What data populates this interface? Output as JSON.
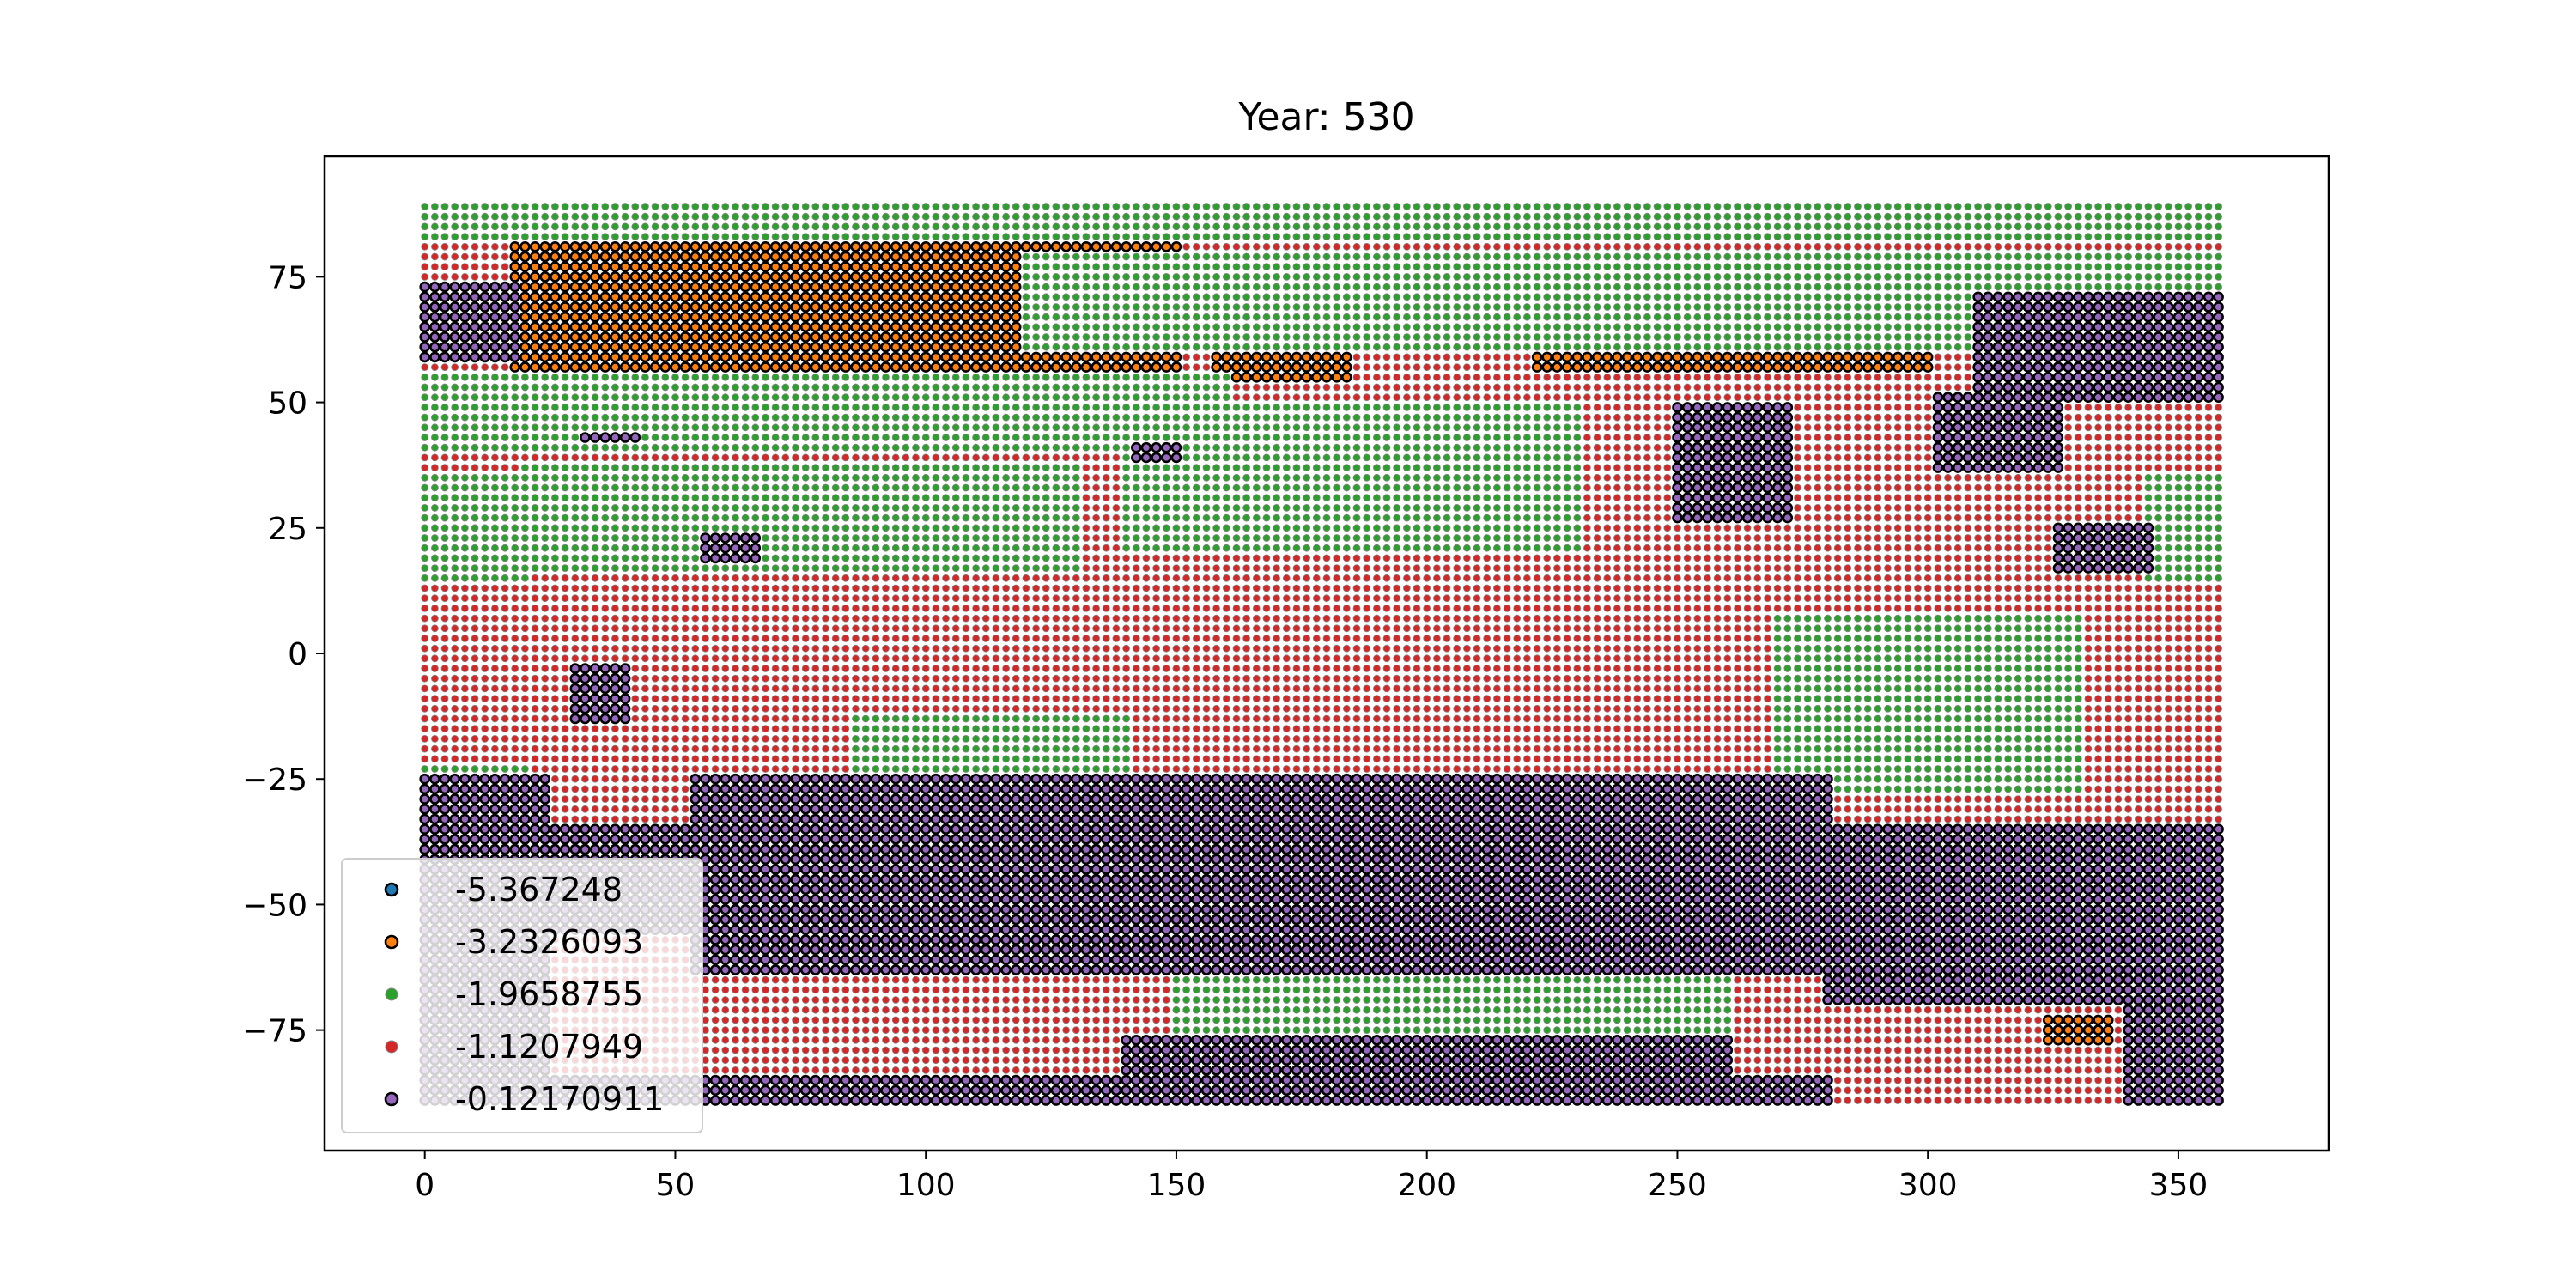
{
  "chart_data": {
    "type": "scatter",
    "title": "Year: 530",
    "xlabel": "",
    "ylabel": "",
    "xlim": [
      -20,
      380
    ],
    "ylim": [
      -99,
      99
    ],
    "grid": false,
    "legend_position": "lower-left",
    "x_ticks": [
      0,
      50,
      100,
      150,
      200,
      250,
      300,
      350
    ],
    "y_ticks": [
      -75,
      -50,
      -25,
      0,
      25,
      50,
      75
    ],
    "x_tick_labels": [
      "0",
      "50",
      "100",
      "150",
      "200",
      "250",
      "300",
      "350"
    ],
    "y_tick_labels": [
      "−75",
      "−50",
      "−25",
      "0",
      "25",
      "50",
      "75"
    ],
    "grid_points": {
      "lon_range": [
        0,
        358
      ],
      "lat_range": [
        -89,
        89
      ],
      "lon_step": 2,
      "lat_step": 2
    },
    "series": [
      {
        "name": "-5.367248",
        "color": "#1f77b4"
      },
      {
        "name": "-3.2326093",
        "color": "#ff7f0e"
      },
      {
        "name": "-1.9658755",
        "color": "#2ca02c"
      },
      {
        "name": "-1.1207949",
        "color": "#d62728"
      },
      {
        "name": "-0.12170911",
        "color": "#9467bd"
      }
    ],
    "regions": [
      {
        "series": 0,
        "lon": [
          34,
          112
        ],
        "lat": [
          60,
          82
        ]
      },
      {
        "series": 1,
        "lon": [
          18,
          150
        ],
        "lat": [
          54,
          86
        ]
      },
      {
        "series": 1,
        "lon": [
          222,
          300
        ],
        "lat": [
          56,
          78
        ]
      },
      {
        "series": 1,
        "lon": [
          158,
          184
        ],
        "lat": [
          54,
          60
        ]
      },
      {
        "series": 1,
        "lon": [
          324,
          336
        ],
        "lat": [
          -78,
          -72
        ]
      },
      {
        "series": 2,
        "lon": [
          0,
          358
        ],
        "lat": [
          82,
          89
        ]
      },
      {
        "series": 2,
        "lon": [
          120,
          360
        ],
        "lat": [
          60,
          80
        ]
      },
      {
        "series": 2,
        "lon": [
          0,
          160
        ],
        "lat": [
          40,
          56
        ]
      },
      {
        "series": 2,
        "lon": [
          20,
          130
        ],
        "lat": [
          16,
          38
        ]
      },
      {
        "series": 2,
        "lon": [
          140,
          230
        ],
        "lat": [
          20,
          50
        ]
      },
      {
        "series": 2,
        "lon": [
          0,
          20
        ],
        "lat": [
          14,
          36
        ]
      },
      {
        "series": 2,
        "lon": [
          270,
          330
        ],
        "lat": [
          -28,
          8
        ]
      },
      {
        "series": 2,
        "lon": [
          86,
          140
        ],
        "lat": [
          -30,
          -12
        ]
      },
      {
        "series": 2,
        "lon": [
          150,
          260
        ],
        "lat": [
          -76,
          -62
        ]
      },
      {
        "series": 2,
        "lon": [
          0,
          20
        ],
        "lat": [
          -36,
          -22
        ]
      },
      {
        "series": 2,
        "lon": [
          344,
          358
        ],
        "lat": [
          14,
          36
        ]
      },
      {
        "series": 4,
        "lon": [
          0,
          358
        ],
        "lat": [
          -56,
          -34
        ]
      },
      {
        "series": 4,
        "lon": [
          54,
          280
        ],
        "lat": [
          -64,
          -24
        ]
      },
      {
        "series": 4,
        "lon": [
          0,
          24
        ],
        "lat": [
          -89,
          -24
        ]
      },
      {
        "series": 4,
        "lon": [
          0,
          280
        ],
        "lat": [
          -89,
          -84
        ]
      },
      {
        "series": 4,
        "lon": [
          140,
          260
        ],
        "lat": [
          -89,
          -76
        ]
      },
      {
        "series": 4,
        "lon": [
          280,
          358
        ],
        "lat": [
          -70,
          -56
        ]
      },
      {
        "series": 4,
        "lon": [
          340,
          358
        ],
        "lat": [
          -89,
          -50
        ]
      },
      {
        "series": 4,
        "lon": [
          0,
          18
        ],
        "lat": [
          58,
          74
        ]
      },
      {
        "series": 4,
        "lon": [
          310,
          358
        ],
        "lat": [
          50,
          72
        ]
      },
      {
        "series": 4,
        "lon": [
          250,
          272
        ],
        "lat": [
          26,
          50
        ]
      },
      {
        "series": 4,
        "lon": [
          302,
          326
        ],
        "lat": [
          36,
          52
        ]
      },
      {
        "series": 4,
        "lon": [
          326,
          344
        ],
        "lat": [
          16,
          26
        ]
      },
      {
        "series": 4,
        "lon": [
          30,
          40
        ],
        "lat": [
          -14,
          -2
        ]
      },
      {
        "series": 4,
        "lon": [
          56,
          66
        ],
        "lat": [
          18,
          24
        ]
      },
      {
        "series": 4,
        "lon": [
          142,
          150
        ],
        "lat": [
          38,
          42
        ]
      },
      {
        "series": 4,
        "lon": [
          32,
          42
        ],
        "lat": [
          42,
          44
        ]
      }
    ]
  }
}
